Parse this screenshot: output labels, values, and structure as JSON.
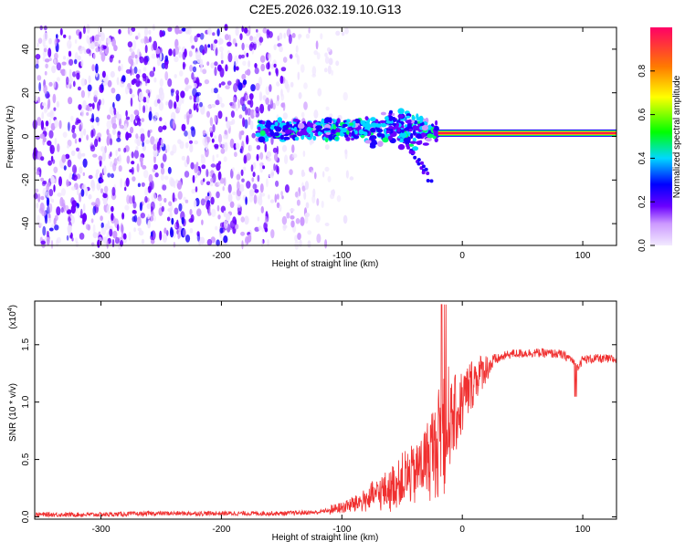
{
  "page": {
    "title": "C2E5.2026.032.19.10.G13"
  },
  "chart_data": [
    {
      "type": "heatmap",
      "title": "C2E5.2026.032.19.10.G13",
      "xlabel": "Height of straight line (km)",
      "ylabel": "Frequency (Hz)",
      "xlim": [
        -355,
        128
      ],
      "ylim": [
        -50,
        50
      ],
      "x_ticks": [
        -300,
        -200,
        -100,
        0,
        100
      ],
      "y_ticks": [
        -40,
        -20,
        0,
        20,
        40
      ],
      "colorbar": {
        "label": "Normalized spectral amplitude",
        "range": [
          0,
          1
        ],
        "ticks": [
          0.0,
          0.2,
          0.4,
          0.6,
          0.8
        ]
      },
      "features": {
        "noise_region_x": [
          -355,
          -130
        ],
        "scatter_band_x": [
          -170,
          -20
        ],
        "scatter_center_hz": 3,
        "steady_line_x": [
          -20,
          128
        ],
        "steady_line_hz": 1.5,
        "steady_line_amplitude": 0.9
      }
    },
    {
      "type": "line",
      "xlabel": "Height of straight line (km)",
      "ylabel": "SNR (10 * v/v)",
      "y_multiplier": "(x10",
      "y_multiplier_exp": "4",
      "xlim": [
        -355,
        128
      ],
      "ylim": [
        -0.02,
        1.88
      ],
      "x_ticks": [
        -300,
        -200,
        -100,
        0,
        100
      ],
      "y_ticks": [
        0.0,
        0.5,
        1.0,
        1.5
      ],
      "series": [
        {
          "name": "SNR",
          "color": "#f03030",
          "x": [
            -355,
            -300,
            -250,
            -200,
            -150,
            -120,
            -100,
            -80,
            -60,
            -40,
            -30,
            -20,
            -15,
            -10,
            0,
            10,
            20,
            30,
            40,
            60,
            80,
            90,
            95,
            100,
            110,
            128
          ],
          "values": [
            0.02,
            0.02,
            0.03,
            0.03,
            0.03,
            0.04,
            0.08,
            0.15,
            0.25,
            0.38,
            0.5,
            0.65,
            0.85,
            0.8,
            1.0,
            1.2,
            1.3,
            1.38,
            1.42,
            1.43,
            1.42,
            1.38,
            1.3,
            1.37,
            1.38,
            1.37
          ]
        }
      ]
    }
  ]
}
